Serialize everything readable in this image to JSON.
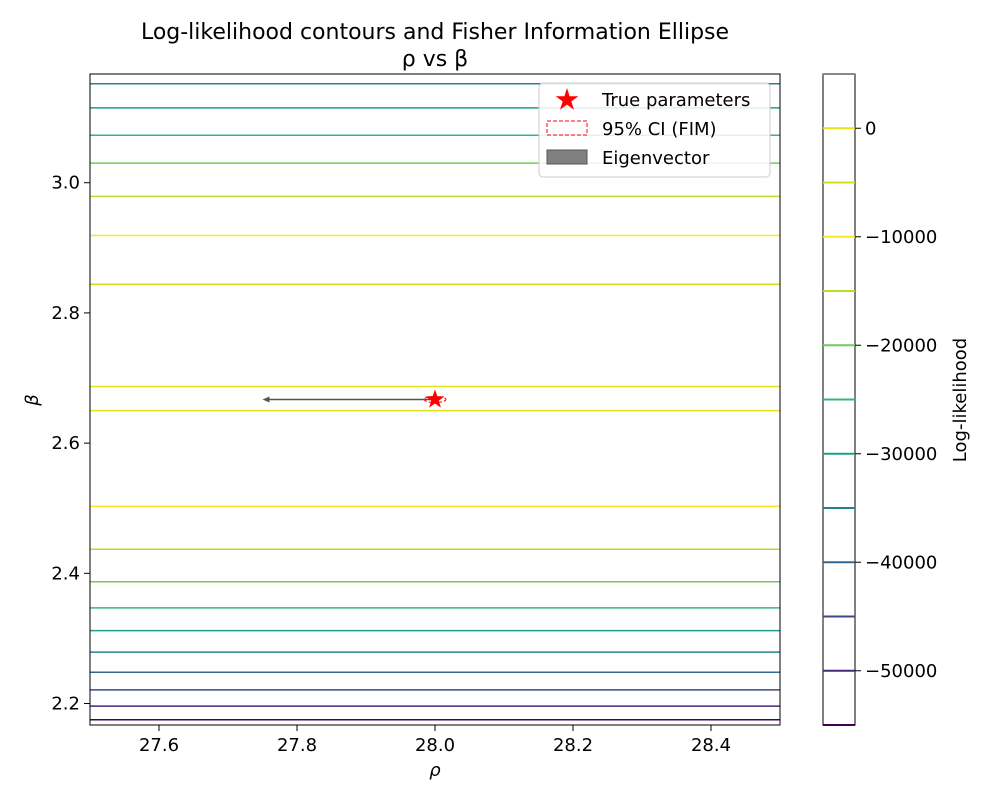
{
  "chart_data": {
    "type": "contour",
    "title_line1": "Log-likelihood contours and Fisher Information Ellipse",
    "title_line2": "ρ vs β",
    "xlabel": "ρ",
    "ylabel": "β",
    "xlim": [
      27.5,
      28.5
    ],
    "ylim": [
      2.167,
      3.167
    ],
    "x_ticks": [
      27.6,
      27.8,
      28.0,
      28.2,
      28.4
    ],
    "x_tick_labels": [
      "27.6",
      "27.8",
      "28.0",
      "28.2",
      "28.4"
    ],
    "y_ticks": [
      2.2,
      2.4,
      2.6,
      2.8,
      3.0
    ],
    "y_tick_labels": [
      "2.2",
      "2.4",
      "2.6",
      "2.8",
      "3.0"
    ],
    "contours": [
      {
        "level": -55000,
        "beta": [
          2.175
        ]
      },
      {
        "level": -50000,
        "beta": [
          2.196
        ]
      },
      {
        "level": -45000,
        "beta": [
          2.221
        ]
      },
      {
        "level": -40000,
        "beta": [
          2.248
        ]
      },
      {
        "level": -35000,
        "beta": [
          2.279,
          3.152
        ]
      },
      {
        "level": -30000,
        "beta": [
          2.312,
          3.115
        ]
      },
      {
        "level": -25000,
        "beta": [
          2.347,
          3.073
        ]
      },
      {
        "level": -20000,
        "beta": [
          2.387,
          3.03
        ]
      },
      {
        "level": -15000,
        "beta": [
          2.437,
          2.979
        ]
      },
      {
        "level": -10000,
        "beta": [
          2.503,
          2.919
        ]
      },
      {
        "level": -5000,
        "beta": [
          2.844
        ]
      },
      {
        "level": 0,
        "beta": [
          2.65,
          2.687
        ]
      }
    ],
    "true_parameters": {
      "rho": 28.0,
      "beta": 2.667
    },
    "eigenvector": {
      "from": [
        28.0,
        2.667
      ],
      "to": [
        27.75,
        2.667
      ]
    },
    "legend": {
      "position": "upper right",
      "items": [
        {
          "label": "True parameters",
          "marker": "star",
          "color": "#ff0000"
        },
        {
          "label": "95% CI (FIM)",
          "marker": "dashed-rect",
          "color": "#ff0000"
        },
        {
          "label": "Eigenvector",
          "marker": "patch",
          "color": "#808080"
        }
      ]
    },
    "colorbar": {
      "label": "Log-likelihood",
      "range": [
        -55000,
        5000
      ],
      "levels": [
        -55000,
        -50000,
        -45000,
        -40000,
        -35000,
        -30000,
        -25000,
        -20000,
        -15000,
        -10000,
        -5000,
        0,
        5000
      ],
      "ticks": [
        0,
        -10000,
        -20000,
        -30000,
        -40000,
        -50000
      ],
      "tick_labels": [
        "0",
        "−10000",
        "−20000",
        "−30000",
        "−40000",
        "−50000"
      ]
    },
    "colors": {
      "-55000": "#440154",
      "-50000": "#482878",
      "-45000": "#3e4989",
      "-40000": "#31688e",
      "-35000": "#26828e",
      "-30000": "#1f9e89",
      "-25000": "#35b779",
      "-20000": "#6ece58",
      "-15000": "#b5de2b",
      "-10000": "#fde725"
    }
  }
}
